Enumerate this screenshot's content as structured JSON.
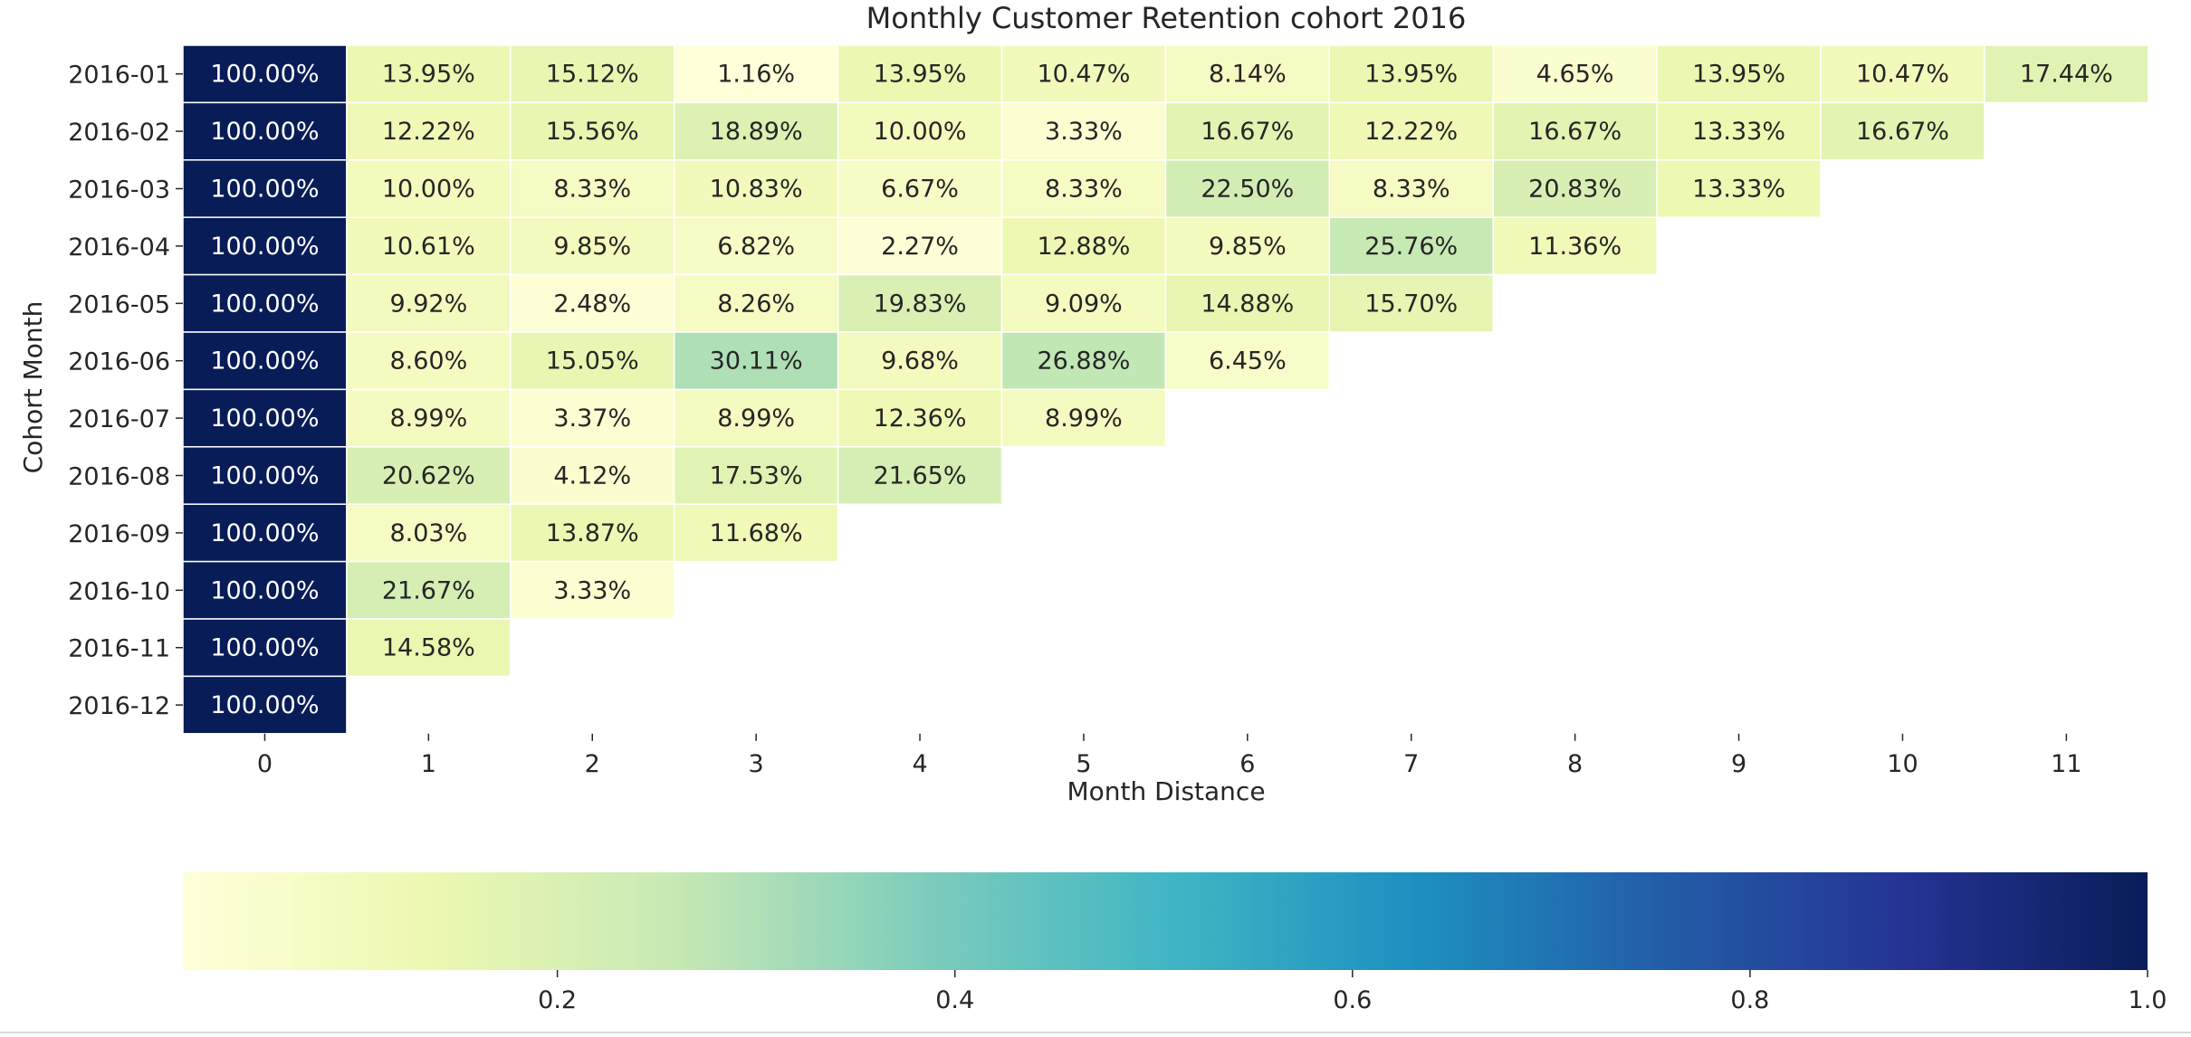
{
  "chart_data": {
    "type": "heatmap",
    "title": "Monthly Customer Retention cohort 2016",
    "xlabel": "Month Distance",
    "ylabel": "Cohort Month",
    "x_tick_labels": [
      "0",
      "1",
      "2",
      "3",
      "4",
      "5",
      "6",
      "7",
      "8",
      "9",
      "10",
      "11"
    ],
    "y_tick_labels": [
      "2016-01",
      "2016-02",
      "2016-03",
      "2016-04",
      "2016-05",
      "2016-06",
      "2016-07",
      "2016-08",
      "2016-09",
      "2016-10",
      "2016-11",
      "2016-12"
    ],
    "values": [
      [
        1.0,
        0.1395,
        0.1512,
        0.0116,
        0.1395,
        0.1047,
        0.0814,
        0.1395,
        0.0465,
        0.1395,
        0.1047,
        0.1744
      ],
      [
        1.0,
        0.1222,
        0.1556,
        0.1889,
        0.1,
        0.0333,
        0.1667,
        0.1222,
        0.1667,
        0.1333,
        0.1667,
        null
      ],
      [
        1.0,
        0.1,
        0.0833,
        0.1083,
        0.0667,
        0.0833,
        0.225,
        0.0833,
        0.2083,
        0.1333,
        null,
        null
      ],
      [
        1.0,
        0.1061,
        0.0985,
        0.0682,
        0.0227,
        0.1288,
        0.0985,
        0.2576,
        0.1136,
        null,
        null,
        null
      ],
      [
        1.0,
        0.0992,
        0.0248,
        0.0826,
        0.1983,
        0.0909,
        0.1488,
        0.157,
        null,
        null,
        null,
        null
      ],
      [
        1.0,
        0.086,
        0.1505,
        0.3011,
        0.0968,
        0.2688,
        0.0645,
        null,
        null,
        null,
        null,
        null
      ],
      [
        1.0,
        0.0899,
        0.0337,
        0.0899,
        0.1236,
        0.0899,
        null,
        null,
        null,
        null,
        null,
        null
      ],
      [
        1.0,
        0.2062,
        0.0412,
        0.1753,
        0.2165,
        null,
        null,
        null,
        null,
        null,
        null,
        null
      ],
      [
        1.0,
        0.0803,
        0.1387,
        0.1168,
        null,
        null,
        null,
        null,
        null,
        null,
        null,
        null
      ],
      [
        1.0,
        0.2167,
        0.0333,
        null,
        null,
        null,
        null,
        null,
        null,
        null,
        null,
        null
      ],
      [
        1.0,
        0.1458,
        null,
        null,
        null,
        null,
        null,
        null,
        null,
        null,
        null,
        null
      ],
      [
        1.0,
        null,
        null,
        null,
        null,
        null,
        null,
        null,
        null,
        null,
        null,
        null
      ]
    ],
    "cell_labels": [
      [
        "100.00%",
        "13.95%",
        "15.12%",
        "1.16%",
        "13.95%",
        "10.47%",
        "8.14%",
        "13.95%",
        "4.65%",
        "13.95%",
        "10.47%",
        "17.44%"
      ],
      [
        "100.00%",
        "12.22%",
        "15.56%",
        "18.89%",
        "10.00%",
        "3.33%",
        "16.67%",
        "12.22%",
        "16.67%",
        "13.33%",
        "16.67%"
      ],
      [
        "100.00%",
        "10.00%",
        "8.33%",
        "10.83%",
        "6.67%",
        "8.33%",
        "22.50%",
        "8.33%",
        "20.83%",
        "13.33%"
      ],
      [
        "100.00%",
        "10.61%",
        "9.85%",
        "6.82%",
        "2.27%",
        "12.88%",
        "9.85%",
        "25.76%",
        "11.36%"
      ],
      [
        "100.00%",
        "9.92%",
        "2.48%",
        "8.26%",
        "19.83%",
        "9.09%",
        "14.88%",
        "15.70%"
      ],
      [
        "100.00%",
        "8.60%",
        "15.05%",
        "30.11%",
        "9.68%",
        "26.88%",
        "6.45%"
      ],
      [
        "100.00%",
        "8.99%",
        "3.37%",
        "8.99%",
        "12.36%",
        "8.99%"
      ],
      [
        "100.00%",
        "20.62%",
        "4.12%",
        "17.53%",
        "21.65%"
      ],
      [
        "100.00%",
        "8.03%",
        "13.87%",
        "11.68%"
      ],
      [
        "100.00%",
        "21.67%",
        "3.33%"
      ],
      [
        "100.00%",
        "14.58%"
      ],
      [
        "100.00%"
      ]
    ],
    "colorbar": {
      "orientation": "horizontal",
      "vmin": 0.0116,
      "vmax": 1.0,
      "ticks": [
        0.2,
        0.4,
        0.6,
        0.8,
        1.0
      ],
      "tick_labels": [
        "0.2",
        "0.4",
        "0.6",
        "0.8",
        "1.0"
      ],
      "colormap": "YlGnBu"
    },
    "colors": {
      "cell_border": "#ffffff",
      "dark_text": "#262626",
      "light_text": "#ffffff",
      "axis_text": "#262626"
    },
    "grid": false
  }
}
